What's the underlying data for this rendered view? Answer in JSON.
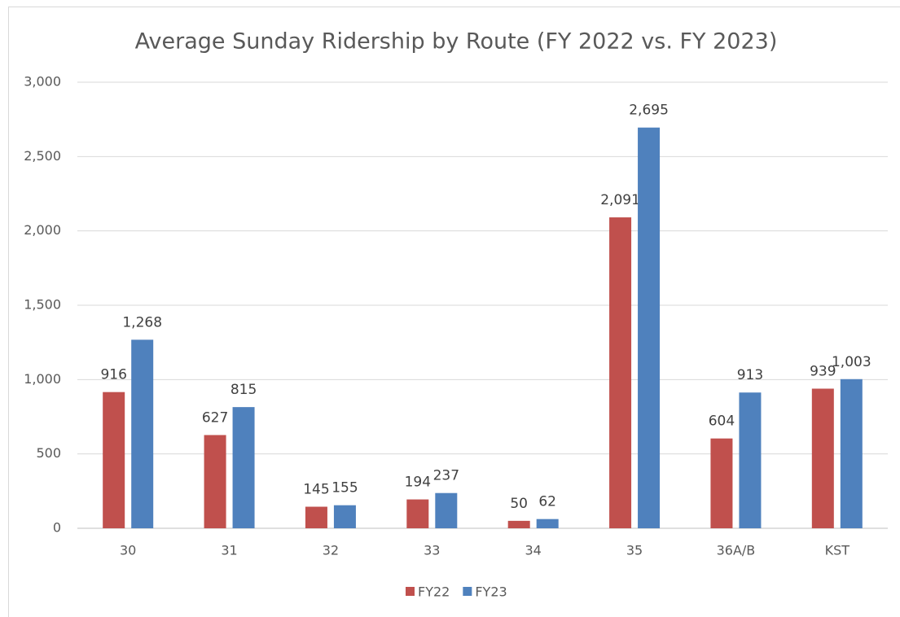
{
  "chart_data": {
    "type": "bar",
    "title": "Average Sunday Ridership by Route (FY 2022 vs. FY 2023)",
    "categories": [
      "30",
      "31",
      "32",
      "33",
      "34",
      "35",
      "36A/B",
      "KST"
    ],
    "series": [
      {
        "name": "FY22",
        "color": "#c0504d",
        "values": [
          916,
          627,
          145,
          194,
          50,
          2091,
          604,
          939
        ],
        "value_labels": [
          "916",
          "627",
          "145",
          "194",
          "50",
          "2,091",
          "604",
          "939"
        ]
      },
      {
        "name": "FY23",
        "color": "#4f81bd",
        "values": [
          1268,
          815,
          155,
          237,
          62,
          2695,
          913,
          1003
        ],
        "value_labels": [
          "1,268",
          "815",
          "155",
          "237",
          "62",
          "2,695",
          "913",
          "1,003"
        ]
      }
    ],
    "ylim": [
      0,
      3000
    ],
    "yticks": [
      0,
      500,
      {
        "value": 1000,
        "label": "1,000"
      },
      {
        "value": 1500,
        "label": "1,500"
      },
      {
        "value": 2000,
        "label": "2,000"
      },
      {
        "value": 2500,
        "label": "2,500"
      },
      {
        "value": 3000,
        "label": "3,000"
      }
    ],
    "grid": true,
    "legend": "bottom"
  }
}
